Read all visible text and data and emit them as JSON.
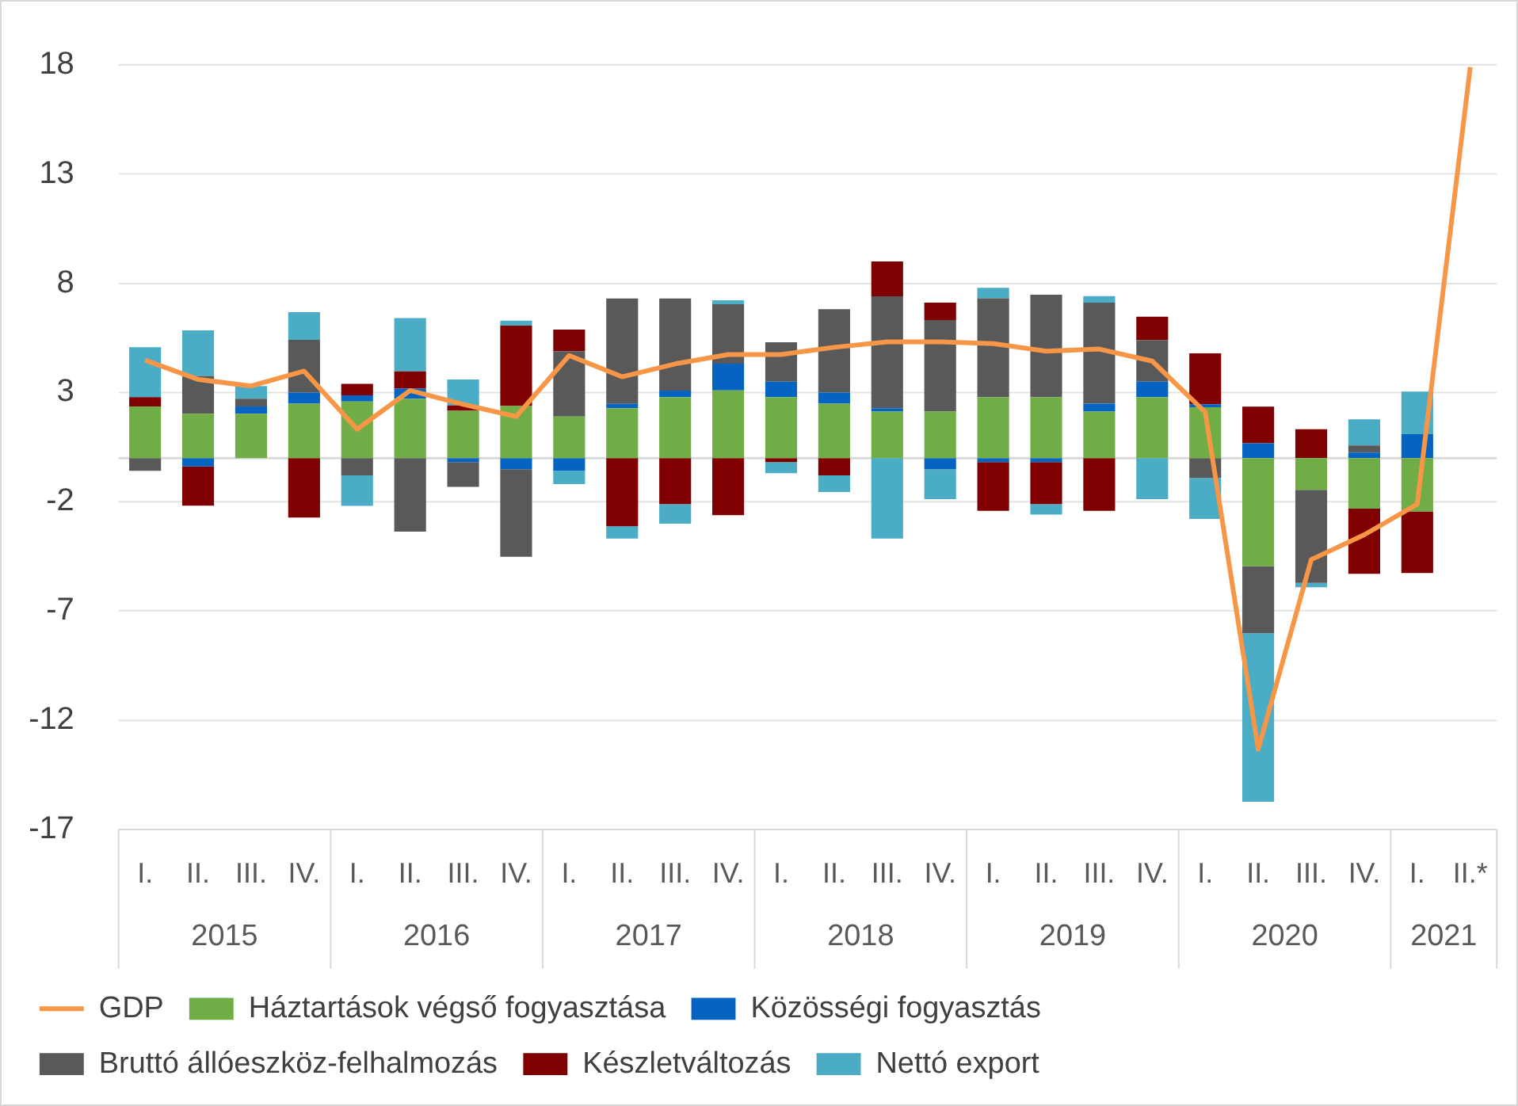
{
  "chart_data": {
    "type": "bar",
    "stacked": true,
    "categories": [
      "I.",
      "II.",
      "III.",
      "IV.",
      "I.",
      "II.",
      "III.",
      "IV.",
      "I.",
      "II.",
      "III.",
      "IV.",
      "I.",
      "II.",
      "III.",
      "IV.",
      "I.",
      "II.",
      "III.",
      "IV.",
      "I.",
      "II.",
      "III.",
      "IV.",
      "I.",
      "II.*"
    ],
    "annotations": [
      "2015",
      "2016",
      "2017",
      "2018",
      "2019",
      "2020",
      "2021"
    ],
    "series": [
      {
        "name": "Háztartások végső fogyasztása",
        "color": "#70ad47",
        "values": [
          2.36,
          2.03,
          2.03,
          2.49,
          2.59,
          2.72,
          2.16,
          2.38,
          1.9,
          2.28,
          2.79,
          3.1,
          2.79,
          2.49,
          2.13,
          2.13,
          2.79,
          2.79,
          2.13,
          2.79,
          2.33,
          -4.95,
          -1.45,
          -2.31,
          -2.44,
          null
        ]
      },
      {
        "name": "Közösségi fogyasztás",
        "color": "#0563c1",
        "values": [
          null,
          -0.38,
          0.33,
          0.51,
          0.28,
          0.46,
          -0.18,
          -0.51,
          -0.58,
          0.2,
          0.3,
          1.22,
          0.71,
          0.51,
          0.15,
          -0.51,
          -0.18,
          -0.18,
          0.36,
          0.71,
          0.13,
          0.68,
          null,
          0.25,
          1.09,
          null
        ]
      },
      {
        "name": "Bruttó állóeszköz-felhalmozás",
        "color": "#595959",
        "values": [
          -0.58,
          1.73,
          0.36,
          2.41,
          -0.79,
          -3.37,
          -1.14,
          -4.01,
          2.99,
          4.82,
          4.21,
          2.72,
          1.8,
          3.81,
          5.12,
          4.19,
          4.52,
          4.69,
          4.62,
          1.9,
          -0.91,
          -3.07,
          -4.26,
          0.33,
          null,
          null
        ]
      },
      {
        "name": "Készletváltozás",
        "color": "#7f0000",
        "values": [
          0.43,
          -1.8,
          null,
          -2.72,
          0.53,
          0.79,
          0.25,
          3.68,
          0.99,
          -3.12,
          -2.11,
          -2.61,
          -0.18,
          -0.79,
          1.6,
          0.79,
          -2.23,
          -1.93,
          -2.41,
          1.07,
          2.33,
          1.67,
          1.32,
          -2.99,
          -2.82,
          null
        ]
      },
      {
        "name": "Nettó export",
        "color": "#4bacc6",
        "values": [
          2.28,
          2.08,
          0.58,
          1.27,
          -1.4,
          2.44,
          1.19,
          0.23,
          -0.61,
          -0.56,
          -0.89,
          0.18,
          -0.51,
          -0.76,
          -3.68,
          -1.37,
          0.48,
          -0.48,
          0.3,
          -1.88,
          -1.88,
          -7.71,
          -0.2,
          1.19,
          1.95,
          null
        ]
      },
      {
        "name": "GDP",
        "type": "line",
        "color": "#f79646",
        "values": [
          4.48,
          3.6,
          3.3,
          3.98,
          1.32,
          3.09,
          2.46,
          1.9,
          4.69,
          3.72,
          4.31,
          4.74,
          4.74,
          5.07,
          5.32,
          5.32,
          5.24,
          4.89,
          4.99,
          4.44,
          2.1,
          -13.32,
          -4.65,
          -3.51,
          -2.11,
          17.9
        ]
      }
    ],
    "ylim": [
      -17,
      18
    ],
    "yticks": [
      18,
      13,
      8,
      3,
      -2,
      -7,
      -12,
      -17
    ],
    "ref_lines": [
      {
        "axis": "y",
        "value": 0,
        "color": "#d9d9d9"
      }
    ],
    "grid": "y",
    "legend": "bottom",
    "marker": "none",
    "line_style": "solid"
  }
}
